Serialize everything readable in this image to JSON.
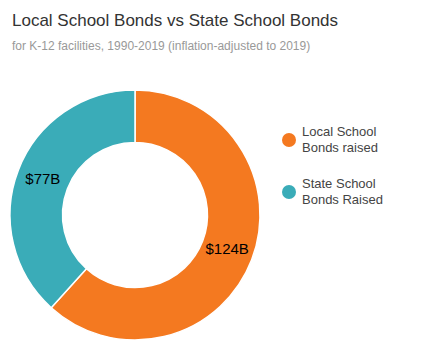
{
  "chart_data": {
    "type": "donut",
    "title": "Local School Bonds vs State School Bonds",
    "subtitle": "for K-12 facilities, 1990-2019 (inflation-adjusted to 2019)",
    "categories": [
      "Local School\nBonds raised",
      "State School\nBonds Raised"
    ],
    "values": [
      124,
      77
    ],
    "value_labels": [
      "$124B",
      "$77B"
    ],
    "colors": [
      "#F47920",
      "#3AACB8"
    ],
    "data_labels": true,
    "legend": "right"
  }
}
